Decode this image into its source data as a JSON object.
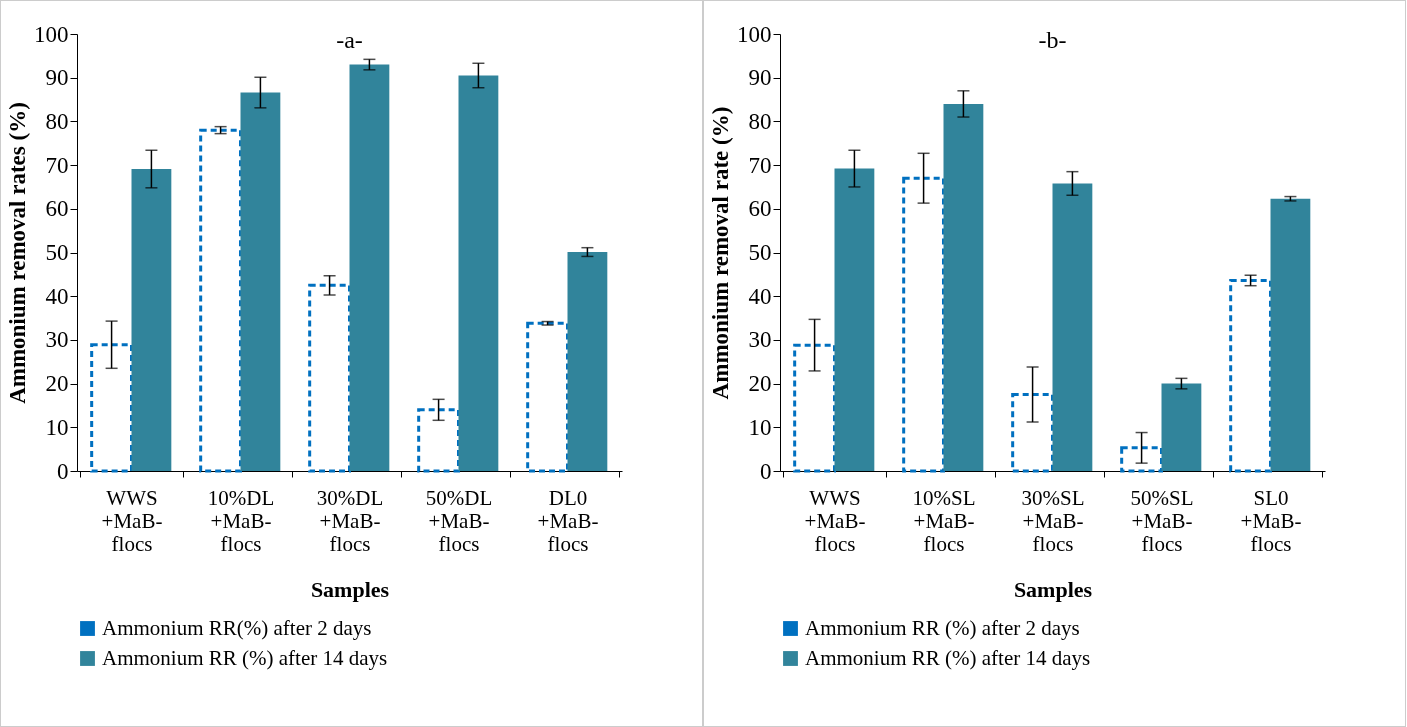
{
  "chart_data": [
    {
      "type": "bar",
      "title": "-a-",
      "xlabel": "Samples",
      "ylabel": "Ammonium removal rates (%)",
      "categories": [
        "WWS +MaB-flocs",
        "10%DL +MaB-flocs",
        "30%DL +MaB-flocs",
        "50%DL +MaB-flocs",
        "DL0 +MaB-flocs"
      ],
      "series": [
        {
          "name": "Ammonium RR(%) after 2 days",
          "color": "#0070c0",
          "line_style": "dashed",
          "values": [
            28.9,
            78,
            42.5,
            14,
            33.8
          ],
          "errors": [
            5.4,
            0.8,
            2.2,
            2.4,
            0.4
          ]
        },
        {
          "name": "Ammonium RR (%) after 14 days",
          "color": "#31849b",
          "values": [
            69.1,
            86.6,
            93,
            90.5,
            50.1
          ],
          "errors": [
            4.3,
            3.5,
            1.2,
            2.8,
            1.0
          ]
        }
      ],
      "ylim": [
        0,
        100
      ],
      "yticks": [
        0,
        10,
        20,
        30,
        40,
        50,
        60,
        70,
        80,
        90,
        100
      ],
      "legend": "bottom"
    },
    {
      "type": "bar",
      "title": "-b-",
      "xlabel": "Samples",
      "ylabel": "Ammonium removal rate (%)",
      "categories": [
        "WWS +MaB-flocs",
        "10%SL +MaB-flocs",
        "30%SL +MaB-flocs",
        "50%SL +MaB-flocs",
        "SL0 +MaB-flocs"
      ],
      "series": [
        {
          "name": "Ammonium RR (%) after 2 days",
          "color": "#0070c0",
          "line_style": "dashed",
          "values": [
            28.8,
            67,
            17.5,
            5.3,
            43.6
          ],
          "errors": [
            5.9,
            5.7,
            6.3,
            3.5,
            1.2
          ]
        },
        {
          "name": "Ammonium RR (%) after 14 days",
          "color": "#31849b",
          "values": [
            69.2,
            84,
            65.8,
            20,
            62.3
          ],
          "errors": [
            4.2,
            3.0,
            2.7,
            1.2,
            0.5
          ]
        }
      ],
      "ylim": [
        0,
        100
      ],
      "yticks": [
        0,
        10,
        20,
        30,
        40,
        50,
        60,
        70,
        80,
        90,
        100
      ],
      "legend": "bottom"
    }
  ]
}
